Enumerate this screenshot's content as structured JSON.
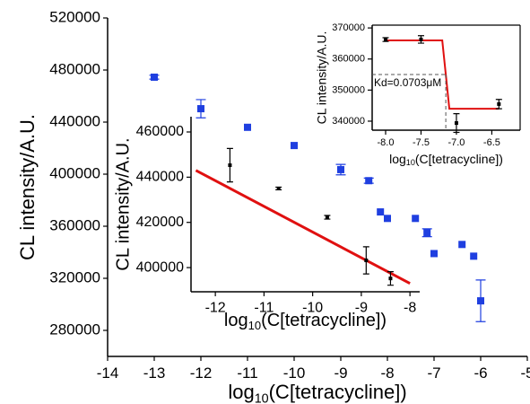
{
  "chart_data": [
    {
      "type": "scatter",
      "xlabel": {
        "text": "log",
        "sub": "10",
        "rest": "(C[tetracycline])"
      },
      "ylabel": "CL intensity/A.U.",
      "xlim": [
        -14,
        -5
      ],
      "ylim": [
        260000,
        520000
      ],
      "xticks": [
        -14,
        -13,
        -12,
        -11,
        -10,
        -9,
        -8,
        -7,
        -6,
        -5
      ],
      "yticks": [
        280000,
        320000,
        360000,
        400000,
        440000,
        480000,
        520000
      ],
      "series": [
        {
          "color": "#1f3fe0",
          "marker": "square",
          "x": [
            -13,
            -12,
            -11,
            -10,
            -9,
            -8.4,
            -8.15,
            -8,
            -7.4,
            -7.15,
            -7,
            -6.4,
            -6.15,
            -6
          ],
          "values": [
            474500,
            450300,
            436000,
            422000,
            403500,
            395000,
            371000,
            366000,
            366000,
            355000,
            339000,
            346000,
            337000,
            302700
          ],
          "errors": [
            1500,
            7000,
            null,
            null,
            4000,
            2000,
            null,
            null,
            null,
            3000,
            null,
            null,
            null,
            16000
          ]
        }
      ],
      "lines": []
    },
    {
      "type": "scatter",
      "xlabel": {
        "text": "log",
        "sub": "10",
        "rest": "(C[tetracycline])"
      },
      "ylabel": "CL intensity/A.U.",
      "xlim": [
        -12.5,
        -7.8
      ],
      "ylim": [
        389300,
        466750
      ],
      "xticks": [
        -12,
        -11,
        -10,
        -9,
        -8
      ],
      "yticks": [
        400000,
        420000,
        440000,
        460000
      ],
      "series": [
        {
          "color": "#000000",
          "marker": "small",
          "x": [
            -11.7,
            -10.7,
            -9.7,
            -8.9,
            -8.4
          ],
          "values": [
            445300,
            435000,
            422250,
            403200,
            395200
          ],
          "errors": [
            7400,
            600,
            800,
            6000,
            3000
          ]
        }
      ],
      "lines": [
        {
          "color": "#e01010",
          "width": 3,
          "dash": false,
          "x": [
            -12.4,
            -8
          ],
          "y": [
            443000,
            393000
          ]
        }
      ]
    },
    {
      "type": "scatter",
      "xlabel": {
        "text": "log",
        "sub": "10",
        "rest": "(C[tetracycline])"
      },
      "ylabel": "CL intensity/A.U.",
      "annotation": "Kd=0.0703μM",
      "xlim": [
        -8.19,
        -6.1
      ],
      "ylim": [
        337100,
        370900
      ],
      "xticks": [
        {
          "value": -8,
          "label": "-8.0"
        },
        -7.5,
        {
          "value": -7,
          "label": "-7.0"
        },
        -6.5
      ],
      "yticks": [
        340000,
        350000,
        360000,
        370000
      ],
      "series": [
        {
          "color": "#000000",
          "marker": "small",
          "x": [
            -8,
            -7.5,
            -7,
            -6.4
          ],
          "values": [
            366250,
            366300,
            339400,
            345500
          ],
          "errors": [
            600,
            1200,
            3000,
            1500
          ]
        }
      ],
      "lines": [
        {
          "color": "#e01010",
          "width": 2,
          "dash": false,
          "x": [
            -8,
            -7.2,
            -7.15,
            -7.1,
            -6.4
          ],
          "y": [
            366000,
            366000,
            355000,
            344000,
            344000
          ]
        },
        {
          "color": "#555555",
          "width": 1,
          "dash": true,
          "x": [
            -8.19,
            -7.15
          ],
          "y": [
            355000,
            355000
          ]
        },
        {
          "color": "#555555",
          "width": 1,
          "dash": true,
          "x": [
            -7.15,
            -7.15
          ],
          "y": [
            355000,
            337100
          ]
        }
      ]
    }
  ]
}
